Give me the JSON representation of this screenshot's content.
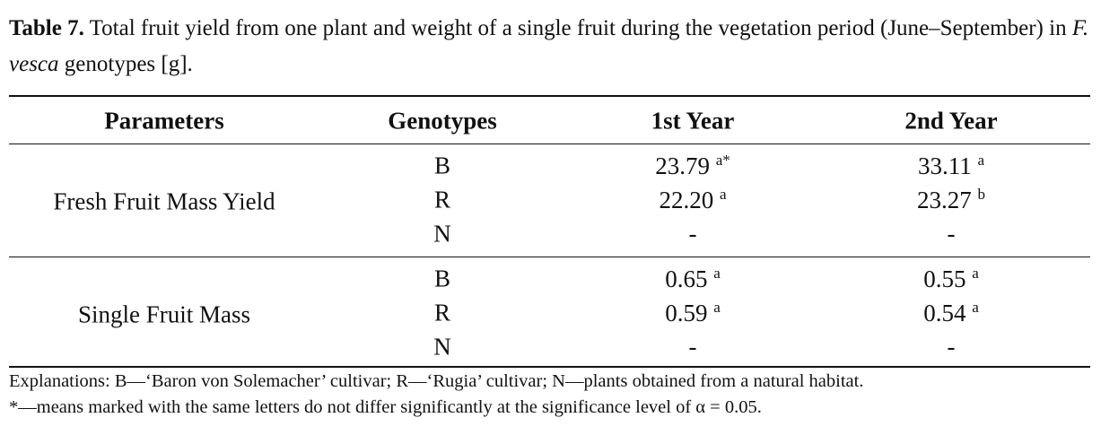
{
  "caption": {
    "label": "Table 7.",
    "text": "Total fruit yield from one plant and weight of a single fruit during the vegetation period (June–September) in",
    "species": "F. vesca",
    "text_end": "genotypes [g]."
  },
  "table": {
    "header": [
      "Parameters",
      "Genotypes",
      "1st Year",
      "2nd Year"
    ],
    "groups": [
      {
        "parameter": "Fresh Fruit Mass Yield",
        "rows": [
          {
            "genotype": "B",
            "year1": {
              "value": "23.79",
              "sup": "a*"
            },
            "year2": {
              "value": "33.11",
              "sup": "a"
            }
          },
          {
            "genotype": "R",
            "year1": {
              "value": "22.20",
              "sup": "a"
            },
            "year2": {
              "value": "23.27",
              "sup": "b"
            }
          },
          {
            "genotype": "N",
            "year1": {
              "value": "-"
            },
            "year2": {
              "value": "-"
            }
          }
        ]
      },
      {
        "parameter": "Single Fruit Mass",
        "rows": [
          {
            "genotype": "B",
            "year1": {
              "value": "0.65",
              "sup": "a"
            },
            "year2": {
              "value": "0.55",
              "sup": "a"
            }
          },
          {
            "genotype": "R",
            "year1": {
              "value": "0.59",
              "sup": "a"
            },
            "year2": {
              "value": "0.54",
              "sup": "a"
            }
          },
          {
            "genotype": "N",
            "year1": {
              "value": "-"
            },
            "year2": {
              "value": "-"
            }
          }
        ]
      }
    ]
  },
  "notes": [
    "Explanations: B—‘Baron von Solemacher’ cultivar; R—‘Rugia’ cultivar; N—plants obtained from a natural habitat.",
    "*—means marked with the same letters do not differ significantly at the significance level of α = 0.05."
  ]
}
